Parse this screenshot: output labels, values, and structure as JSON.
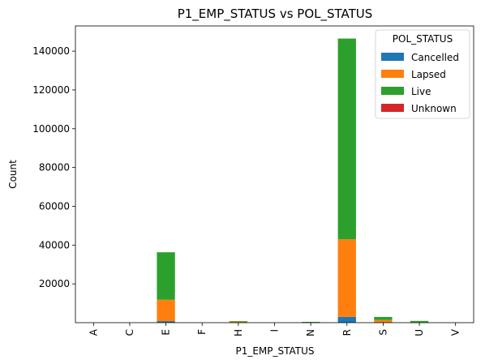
{
  "chart_data": {
    "type": "bar",
    "stacked": true,
    "title": "P1_EMP_STATUS vs POL_STATUS",
    "xlabel": "P1_EMP_STATUS",
    "ylabel": "Count",
    "ylim": [
      0,
      150000
    ],
    "yticks": [
      20000,
      40000,
      60000,
      80000,
      100000,
      120000,
      140000
    ],
    "grid": false,
    "legend": {
      "title": "POL_STATUS",
      "position": "top-right"
    },
    "categories": [
      "A",
      "C",
      "E",
      "F",
      "H",
      "I",
      "N",
      "R",
      "S",
      "U",
      "V"
    ],
    "series": [
      {
        "name": "Cancelled",
        "color": "#1f77b4",
        "values": [
          0,
          0,
          800,
          0,
          50,
          0,
          50,
          3000,
          150,
          50,
          0
        ]
      },
      {
        "name": "Lapsed",
        "color": "#ff7f0e",
        "values": [
          0,
          0,
          11000,
          0,
          500,
          0,
          100,
          40000,
          1200,
          200,
          0
        ]
      },
      {
        "name": "Live",
        "color": "#2ca02c",
        "values": [
          0,
          0,
          24500,
          0,
          300,
          0,
          250,
          103500,
          1600,
          650,
          0
        ]
      },
      {
        "name": "Unknown",
        "color": "#d62728",
        "values": [
          0,
          0,
          0,
          0,
          0,
          0,
          0,
          0,
          0,
          0,
          0
        ]
      }
    ]
  }
}
